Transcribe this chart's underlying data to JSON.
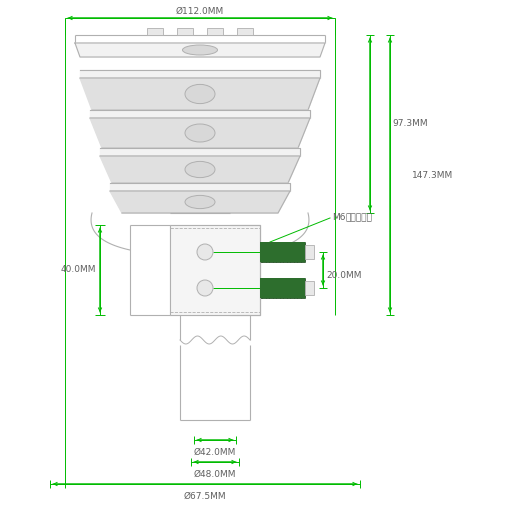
{
  "bg_color": "#ffffff",
  "line_color": "#b0b0b0",
  "dim_color": "#00bb00",
  "dark_line": "#606060",
  "screw_color": "#2d6e2d",
  "text_color": "#606060",
  "annotations": {
    "d112": "Ø112.0MM",
    "d97": "97.3MM",
    "d147": "147.3MM",
    "d40": "40.0MM",
    "d20": "20.0MM",
    "d42": "Ø42.0MM",
    "d48": "Ø48.0MM",
    "d67": "Ø67.5MM",
    "m6_en": "M6",
    "m6_cn": "内六方螺丝"
  },
  "figsize": [
    5.16,
    5.3
  ],
  "dpi": 100
}
